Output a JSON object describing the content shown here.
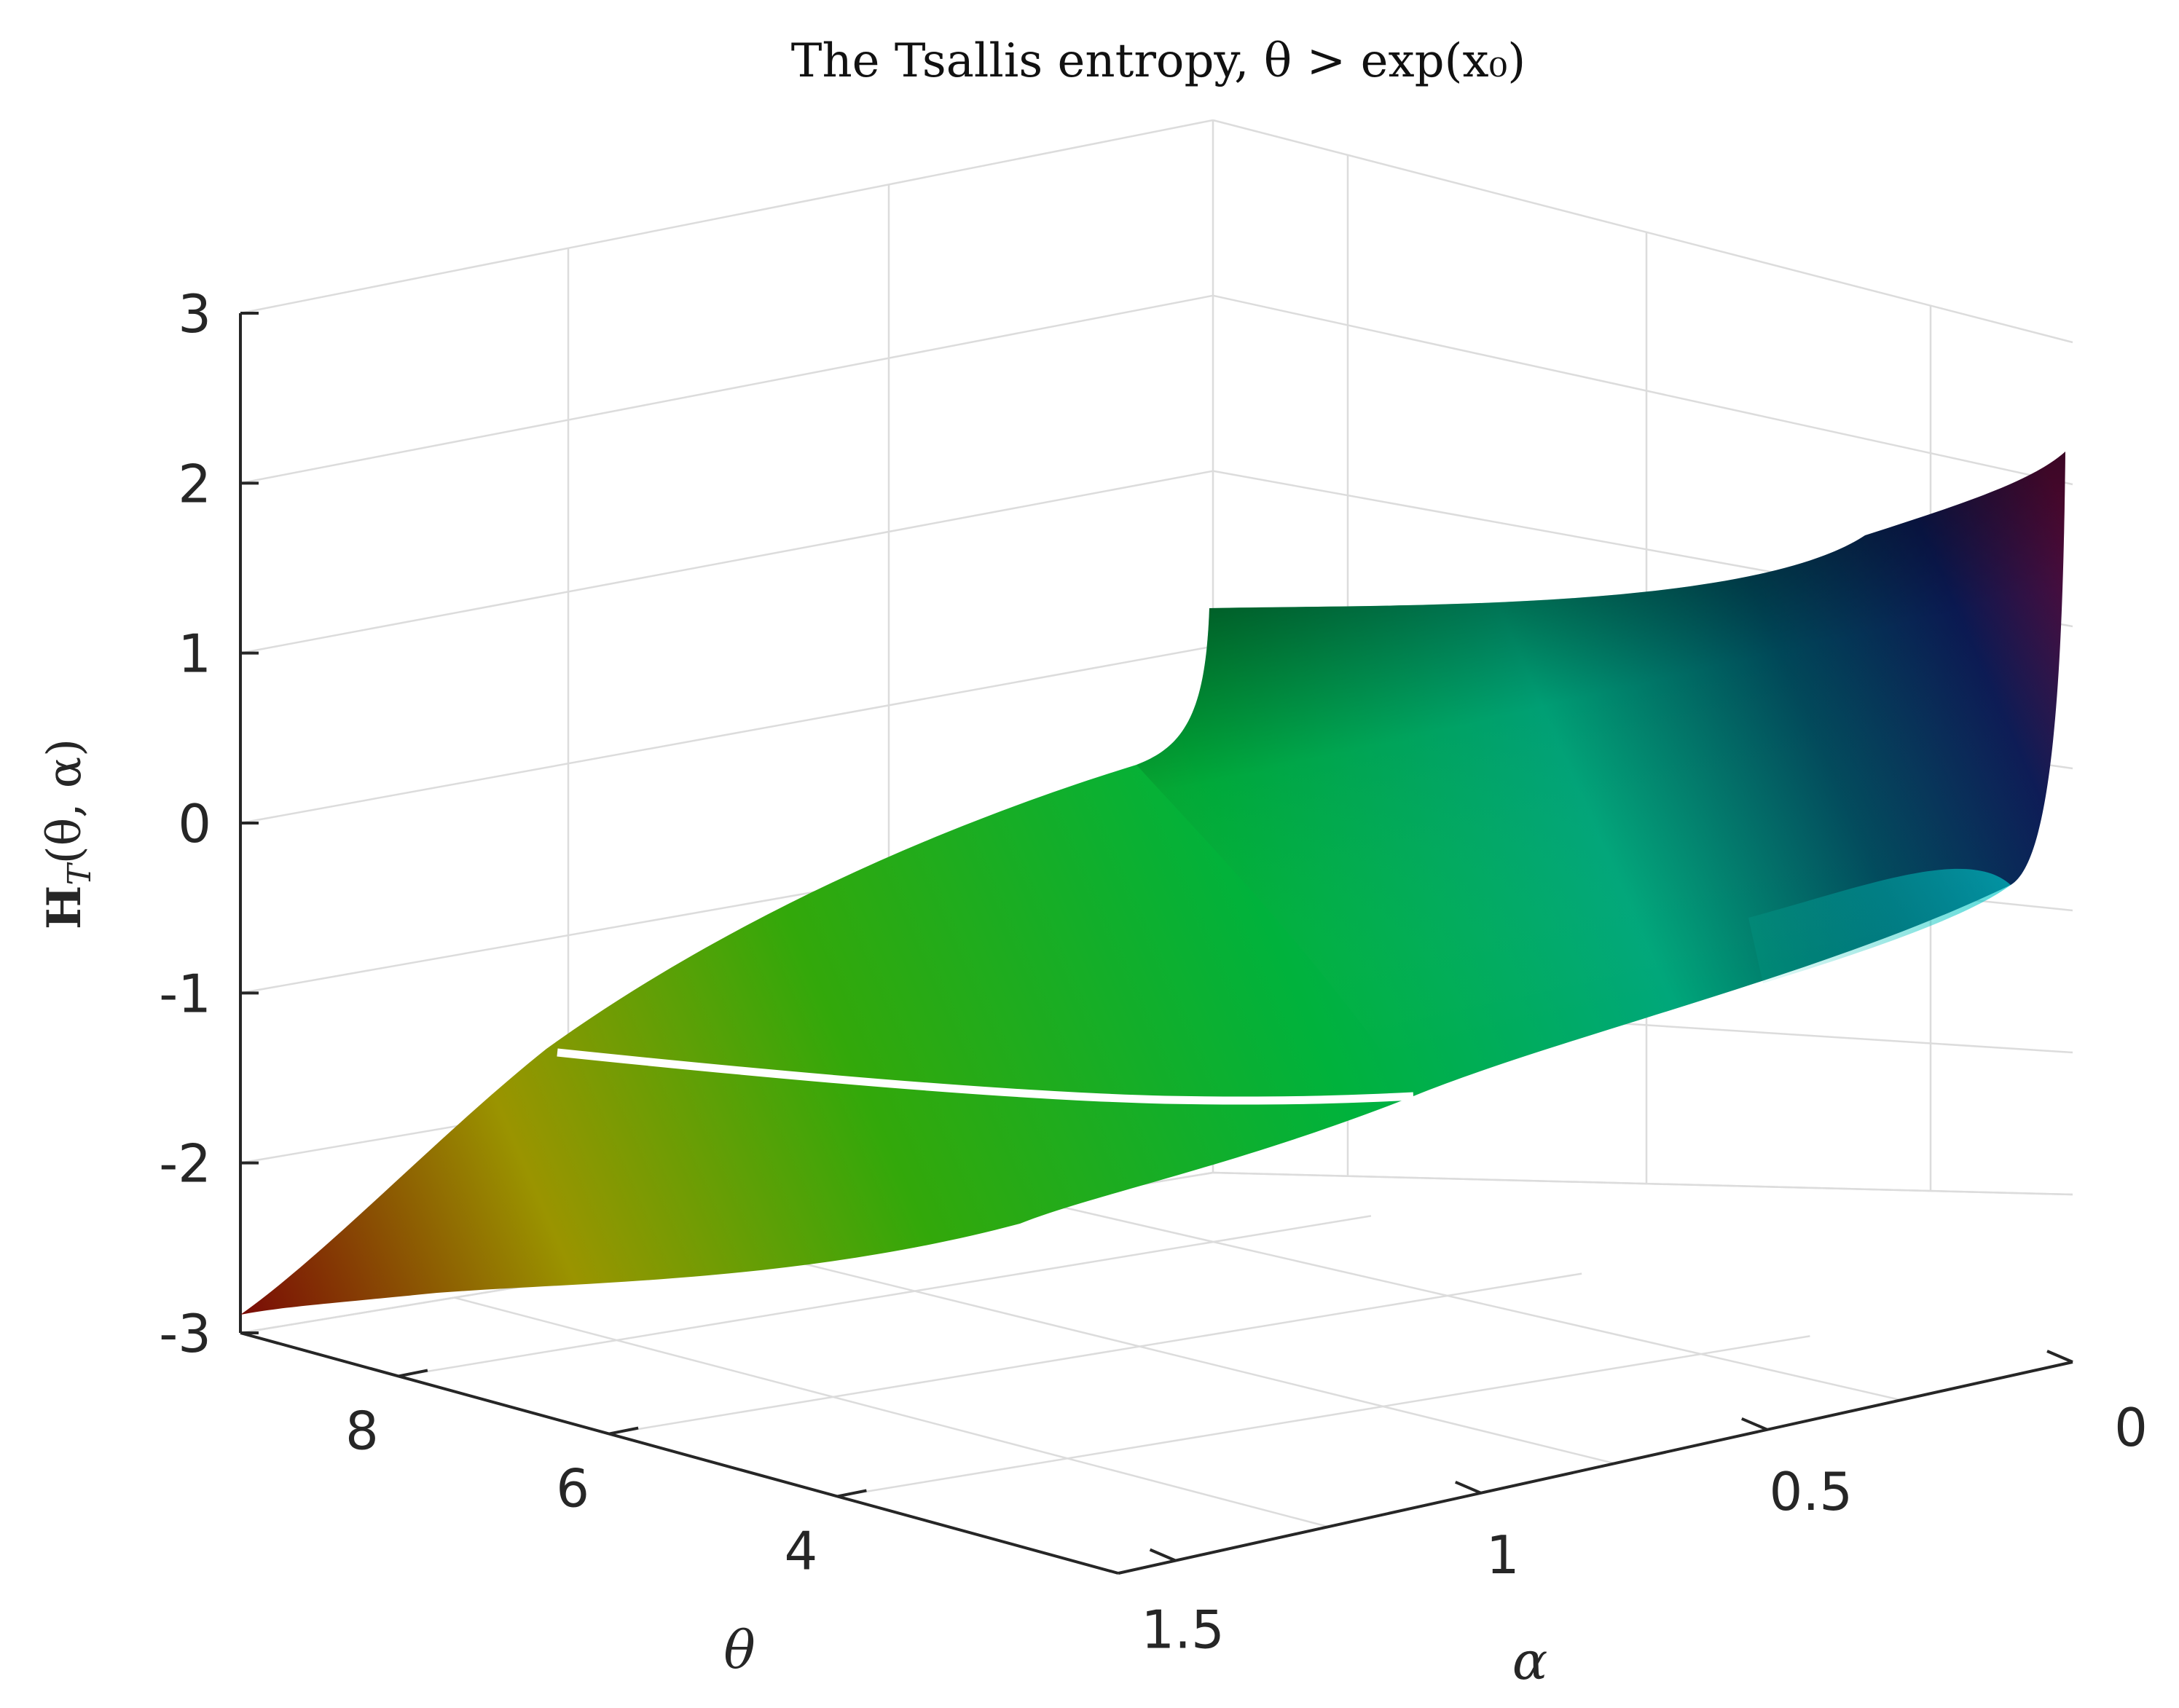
{
  "chart_data": {
    "type": "surface",
    "title": "The Tsallis entropy, θ > exp(x₀)",
    "xlabel": "α",
    "ylabel": "θ",
    "zlabel_main": "H",
    "zlabel_sub": "T",
    "zlabel_args": "(θ, α)",
    "alpha_ticks": [
      "0",
      "0.5",
      "1",
      "1.5"
    ],
    "alpha_tick_values": [
      0,
      0.5,
      1,
      1.5
    ],
    "theta_ticks": [
      "8",
      "6",
      "4"
    ],
    "theta_tick_values": [
      8,
      6,
      4
    ],
    "z_ticks": [
      "3",
      "2",
      "1",
      "0",
      "-1",
      "-2",
      "-3"
    ],
    "z_tick_values": [
      3,
      2,
      1,
      0,
      -1,
      -2,
      -3
    ],
    "xlim": [
      0,
      1.6
    ],
    "ylim": [
      3.2,
      9
    ],
    "zlim": [
      -3,
      3
    ],
    "grid": true,
    "colormap": "hsv-like (dark red → olive → green → cyan → navy → purple)",
    "surface_corners": {
      "alpha_0_theta_3_2": 2.2,
      "alpha_0_theta_9": 1.0,
      "alpha_1_6_theta_3_2": -1.6,
      "alpha_1_6_theta_9": -2.9
    },
    "highlight_curve": {
      "description": "",
      "alpha_value": 1
    }
  }
}
